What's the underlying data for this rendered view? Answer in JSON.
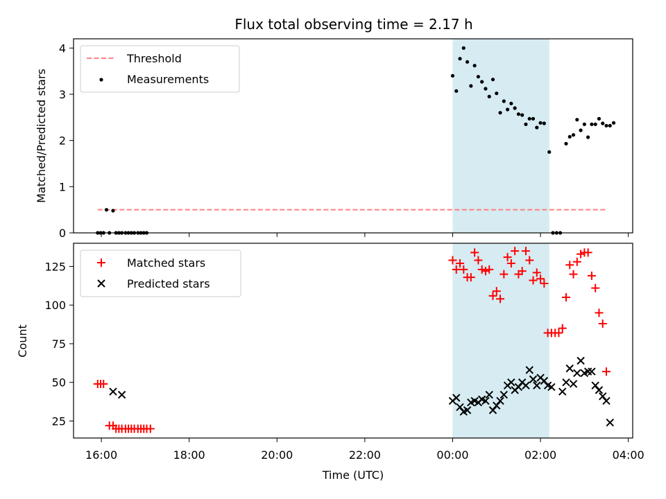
{
  "title": "Flux total observing time = 2.17 h",
  "colors": {
    "measurement": "#000000",
    "threshold": "#ff7f7f",
    "matched": "#ff0000",
    "predicted": "#000000",
    "span": "#add8e6"
  },
  "chart_data": [
    {
      "type": "scatter",
      "ylabel": "Matched/Predicted stars",
      "xlim": [
        "15:22",
        "04:06"
      ],
      "ylim": [
        0,
        4.2
      ],
      "yticks": [
        "0",
        "1",
        "2",
        "3",
        "4"
      ],
      "shaded_span": [
        "00:00",
        "02:12"
      ],
      "legend": {
        "placement": "top-left",
        "entries": [
          "Threshold",
          "Measurements"
        ]
      },
      "threshold": {
        "name": "Threshold",
        "y": 0.5,
        "x": [
          "15:55",
          "03:30"
        ],
        "style": "dashed"
      },
      "series": [
        {
          "name": "Measurements",
          "points": [
            [
              "15:55",
              0
            ],
            [
              "15:59",
              0
            ],
            [
              "16:03",
              0
            ],
            [
              "16:07",
              0.5
            ],
            [
              "16:11",
              0
            ],
            [
              "16:16",
              0.48
            ],
            [
              "16:20",
              0
            ],
            [
              "16:24",
              0
            ],
            [
              "16:28",
              0
            ],
            [
              "16:33",
              0
            ],
            [
              "16:37",
              0
            ],
            [
              "16:41",
              0
            ],
            [
              "16:45",
              0
            ],
            [
              "16:50",
              0
            ],
            [
              "16:54",
              0
            ],
            [
              "16:58",
              0
            ],
            [
              "17:02",
              0
            ],
            [
              "00:00",
              3.4
            ],
            [
              "00:05",
              3.07
            ],
            [
              "00:10",
              3.77
            ],
            [
              "00:15",
              4.0
            ],
            [
              "00:20",
              3.7
            ],
            [
              "00:25",
              3.18
            ],
            [
              "00:30",
              3.62
            ],
            [
              "00:35",
              3.38
            ],
            [
              "00:40",
              3.27
            ],
            [
              "00:45",
              3.12
            ],
            [
              "00:50",
              2.95
            ],
            [
              "00:55",
              3.32
            ],
            [
              "01:00",
              3.02
            ],
            [
              "01:05",
              2.6
            ],
            [
              "01:10",
              2.85
            ],
            [
              "01:15",
              2.67
            ],
            [
              "01:20",
              2.8
            ],
            [
              "01:25",
              2.7
            ],
            [
              "01:30",
              2.57
            ],
            [
              "01:35",
              2.55
            ],
            [
              "01:40",
              2.35
            ],
            [
              "01:45",
              2.47
            ],
            [
              "01:50",
              2.47
            ],
            [
              "01:55",
              2.28
            ],
            [
              "02:00",
              2.38
            ],
            [
              "02:05",
              2.37
            ],
            [
              "02:12",
              1.75
            ],
            [
              "02:17",
              0
            ],
            [
              "02:22",
              0
            ],
            [
              "02:27",
              0
            ],
            [
              "02:35",
              1.93
            ],
            [
              "02:40",
              2.08
            ],
            [
              "02:45",
              2.12
            ],
            [
              "02:50",
              2.45
            ],
            [
              "02:55",
              2.22
            ],
            [
              "03:00",
              2.35
            ],
            [
              "03:05",
              2.07
            ],
            [
              "03:10",
              2.35
            ],
            [
              "03:15",
              2.35
            ],
            [
              "03:20",
              2.47
            ],
            [
              "03:25",
              2.37
            ],
            [
              "03:30",
              2.32
            ],
            [
              "03:35",
              2.32
            ],
            [
              "03:40",
              2.38
            ]
          ]
        }
      ]
    },
    {
      "type": "scatter",
      "xlabel": "Time (UTC)",
      "ylabel": "Count",
      "xlim": [
        "15:22",
        "04:06"
      ],
      "ylim": [
        14,
        140
      ],
      "yticks": [
        "25",
        "50",
        "75",
        "100",
        "125"
      ],
      "xticks": [
        "16:00",
        "18:00",
        "20:00",
        "22:00",
        "00:00",
        "02:00",
        "04:00"
      ],
      "shaded_span": [
        "00:00",
        "02:12"
      ],
      "legend": {
        "placement": "top-left",
        "entries": [
          "Matched stars",
          "Predicted stars"
        ]
      },
      "series": [
        {
          "name": "Matched stars",
          "marker": "+",
          "points": [
            [
              "15:55",
              49
            ],
            [
              "15:59",
              49
            ],
            [
              "16:03",
              49
            ],
            [
              "16:11",
              22
            ],
            [
              "16:16",
              22
            ],
            [
              "16:20",
              20
            ],
            [
              "16:24",
              20
            ],
            [
              "16:28",
              20
            ],
            [
              "16:33",
              20
            ],
            [
              "16:37",
              20
            ],
            [
              "16:41",
              20
            ],
            [
              "16:45",
              20
            ],
            [
              "16:50",
              20
            ],
            [
              "16:54",
              20
            ],
            [
              "16:58",
              20
            ],
            [
              "17:02",
              20
            ],
            [
              "17:07",
              20
            ],
            [
              "00:00",
              129
            ],
            [
              "00:05",
              123
            ],
            [
              "00:10",
              127
            ],
            [
              "00:15",
              123
            ],
            [
              "00:20",
              118
            ],
            [
              "00:25",
              118
            ],
            [
              "00:30",
              134
            ],
            [
              "00:35",
              129
            ],
            [
              "00:40",
              123
            ],
            [
              "00:45",
              122
            ],
            [
              "00:50",
              123
            ],
            [
              "00:55",
              106
            ],
            [
              "01:00",
              109
            ],
            [
              "01:05",
              104
            ],
            [
              "01:10",
              120
            ],
            [
              "01:15",
              131
            ],
            [
              "01:20",
              127
            ],
            [
              "01:25",
              135
            ],
            [
              "01:30",
              120
            ],
            [
              "01:35",
              122
            ],
            [
              "01:40",
              135
            ],
            [
              "01:45",
              129
            ],
            [
              "01:50",
              116
            ],
            [
              "01:55",
              121
            ],
            [
              "02:00",
              117
            ],
            [
              "02:05",
              114
            ],
            [
              "02:10",
              82
            ],
            [
              "02:15",
              82
            ],
            [
              "02:20",
              82
            ],
            [
              "02:25",
              82
            ],
            [
              "02:30",
              85
            ],
            [
              "02:35",
              105
            ],
            [
              "02:40",
              126
            ],
            [
              "02:45",
              120
            ],
            [
              "02:50",
              128
            ],
            [
              "02:55",
              133
            ],
            [
              "03:00",
              134
            ],
            [
              "03:05",
              134
            ],
            [
              "03:10",
              119
            ],
            [
              "03:15",
              111
            ],
            [
              "03:20",
              95
            ],
            [
              "03:25",
              88
            ],
            [
              "03:30",
              57
            ]
          ]
        },
        {
          "name": "Predicted stars",
          "marker": "x",
          "points": [
            [
              "16:16",
              44
            ],
            [
              "16:28",
              42
            ],
            [
              "00:00",
              38
            ],
            [
              "00:05",
              40
            ],
            [
              "00:10",
              34
            ],
            [
              "00:15",
              31
            ],
            [
              "00:20",
              32
            ],
            [
              "00:25",
              37
            ],
            [
              "00:30",
              38
            ],
            [
              "00:35",
              37
            ],
            [
              "00:40",
              39
            ],
            [
              "00:45",
              38
            ],
            [
              "00:50",
              42
            ],
            [
              "00:55",
              32
            ],
            [
              "01:00",
              35
            ],
            [
              "01:05",
              38
            ],
            [
              "01:10",
              42
            ],
            [
              "01:15",
              48
            ],
            [
              "01:20",
              50
            ],
            [
              "01:25",
              45
            ],
            [
              "01:30",
              47
            ],
            [
              "01:35",
              50
            ],
            [
              "01:40",
              48
            ],
            [
              "01:45",
              58
            ],
            [
              "01:50",
              52
            ],
            [
              "01:55",
              48
            ],
            [
              "02:00",
              53
            ],
            [
              "02:05",
              51
            ],
            [
              "02:10",
              48
            ],
            [
              "02:15",
              47
            ],
            [
              "02:30",
              44
            ],
            [
              "02:35",
              50
            ],
            [
              "02:40",
              59
            ],
            [
              "02:45",
              49
            ],
            [
              "02:50",
              56
            ],
            [
              "02:55",
              64
            ],
            [
              "03:00",
              56
            ],
            [
              "03:05",
              57
            ],
            [
              "03:10",
              57
            ],
            [
              "03:15",
              48
            ],
            [
              "03:20",
              45
            ],
            [
              "03:25",
              41
            ],
            [
              "03:30",
              38
            ],
            [
              "03:35",
              24
            ]
          ]
        }
      ]
    }
  ]
}
